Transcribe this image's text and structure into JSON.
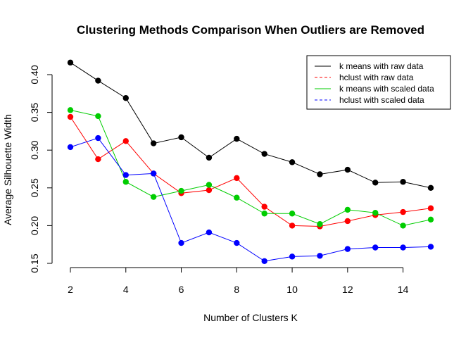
{
  "chart_data": {
    "type": "line",
    "title": "Clustering Methods Comparison When Outliers are Removed",
    "xlabel": "Number of Clusters K",
    "ylabel": "Average Silhouette Width",
    "xlim": [
      2,
      15
    ],
    "ylim": [
      0.15,
      0.42
    ],
    "x_ticks": [
      2,
      4,
      6,
      8,
      10,
      12,
      14
    ],
    "y_ticks": [
      0.15,
      0.2,
      0.25,
      0.3,
      0.35,
      0.4
    ],
    "y_tick_labels": [
      "0.15",
      "0.20",
      "0.25",
      "0.30",
      "0.35",
      "0.40"
    ],
    "x": [
      2,
      3,
      4,
      5,
      6,
      7,
      8,
      9,
      10,
      11,
      12,
      13,
      14,
      15
    ],
    "legend_position": "top-right",
    "series": [
      {
        "name": "k means with raw data",
        "color": "#000000",
        "values": [
          0.416,
          0.392,
          0.369,
          0.309,
          0.317,
          0.29,
          0.315,
          0.295,
          0.284,
          0.268,
          0.274,
          0.257,
          0.258,
          0.25
        ]
      },
      {
        "name": "hclust with raw data",
        "color": "#ff0000",
        "values": [
          0.344,
          0.288,
          0.312,
          0.269,
          0.243,
          0.247,
          0.263,
          0.225,
          0.2,
          0.199,
          0.206,
          0.214,
          0.218,
          0.223
        ]
      },
      {
        "name": "k means with scaled data",
        "color": "#00cd00",
        "values": [
          0.353,
          0.345,
          0.258,
          0.238,
          0.246,
          0.254,
          0.237,
          0.216,
          0.216,
          0.202,
          0.221,
          0.217,
          0.2,
          0.208
        ]
      },
      {
        "name": "hclust with scaled data",
        "color": "#0000ff",
        "values": [
          0.304,
          0.316,
          0.267,
          0.269,
          0.177,
          0.191,
          0.177,
          0.153,
          0.159,
          0.16,
          0.169,
          0.171,
          0.171,
          0.172
        ]
      }
    ]
  }
}
